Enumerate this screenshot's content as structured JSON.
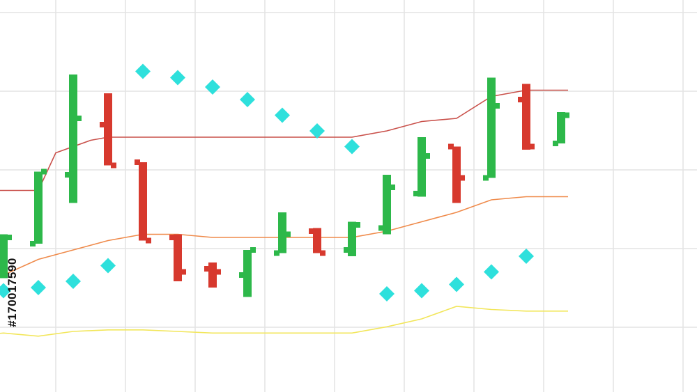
{
  "watermark": {
    "stock_id": "#170017590"
  },
  "colors": {
    "background": "#ffffff",
    "grid": "#e3e3e3",
    "up_bar": "#2db84a",
    "down_bar": "#d7392e",
    "sar_dot": "#2ee0dc",
    "upper_band": "#c9504a",
    "middle_band": "#ef8a4a",
    "lower_band": "#f2e65a"
  },
  "chart_data": {
    "type": "ohlc",
    "title": "",
    "xlabel": "",
    "ylabel": "",
    "grid": true,
    "ylim": [
      0,
      100
    ],
    "x": [
      1,
      2,
      3,
      4,
      5,
      6,
      7,
      8,
      9,
      10,
      11,
      12,
      13,
      14,
      15,
      16,
      17
    ],
    "series": [
      {
        "kind": "ohlc",
        "values": [
          {
            "x": 0,
            "open": 20,
            "high": 33,
            "low": 19,
            "close": 32,
            "dir": "up"
          },
          {
            "x": 1,
            "open": 30,
            "high": 53,
            "low": 30,
            "close": 53,
            "dir": "up"
          },
          {
            "x": 2,
            "open": 52,
            "high": 84,
            "low": 43,
            "close": 70,
            "dir": "up"
          },
          {
            "x": 3,
            "open": 68,
            "high": 78,
            "low": 55,
            "close": 55,
            "dir": "down"
          },
          {
            "x": 4,
            "open": 56,
            "high": 56,
            "low": 31,
            "close": 31,
            "dir": "down"
          },
          {
            "x": 5,
            "open": 32,
            "high": 33,
            "low": 18,
            "close": 21,
            "dir": "down"
          },
          {
            "x": 6,
            "open": 22,
            "high": 24,
            "low": 16,
            "close": 21,
            "dir": "down"
          },
          {
            "x": 7,
            "open": 20,
            "high": 28,
            "low": 13,
            "close": 28,
            "dir": "up"
          },
          {
            "x": 8,
            "open": 27,
            "high": 40,
            "low": 27,
            "close": 33,
            "dir": "up"
          },
          {
            "x": 9,
            "open": 34,
            "high": 35,
            "low": 27,
            "close": 27,
            "dir": "down"
          },
          {
            "x": 10,
            "open": 28,
            "high": 37,
            "low": 26,
            "close": 36,
            "dir": "up"
          },
          {
            "x": 11,
            "open": 35,
            "high": 52,
            "low": 33,
            "close": 48,
            "dir": "up"
          },
          {
            "x": 12,
            "open": 46,
            "high": 64,
            "low": 45,
            "close": 58,
            "dir": "up"
          },
          {
            "x": 13,
            "open": 61,
            "high": 61,
            "low": 43,
            "close": 51,
            "dir": "down"
          },
          {
            "x": 14,
            "open": 51,
            "high": 83,
            "low": 51,
            "close": 74,
            "dir": "up"
          },
          {
            "x": 15,
            "open": 76,
            "high": 81,
            "low": 60,
            "close": 61,
            "dir": "down"
          },
          {
            "x": 16,
            "open": 62,
            "high": 72,
            "low": 62,
            "close": 71,
            "dir": "up"
          }
        ]
      },
      {
        "kind": "dots",
        "values": [
          {
            "x": -1,
            "y": 38
          },
          {
            "x": 0,
            "y": 15
          },
          {
            "x": 1,
            "y": 16
          },
          {
            "x": 2,
            "y": 18
          },
          {
            "x": 3,
            "y": 23
          },
          {
            "x": 4,
            "y": 85
          },
          {
            "x": 5,
            "y": 83
          },
          {
            "x": 6,
            "y": 80
          },
          {
            "x": 7,
            "y": 76
          },
          {
            "x": 8,
            "y": 71
          },
          {
            "x": 9,
            "y": 66
          },
          {
            "x": 10,
            "y": 61
          },
          {
            "x": 11,
            "y": 14
          },
          {
            "x": 12,
            "y": 15
          },
          {
            "x": 13,
            "y": 17
          },
          {
            "x": 14,
            "y": 21
          },
          {
            "x": 15,
            "y": 26
          }
        ]
      },
      {
        "kind": "line",
        "role": "upper",
        "values": [
          {
            "x": -1.5,
            "y": 47
          },
          {
            "x": 0,
            "y": 47
          },
          {
            "x": 1,
            "y": 47
          },
          {
            "x": 1.5,
            "y": 59
          },
          {
            "x": 2.5,
            "y": 63
          },
          {
            "x": 3,
            "y": 64
          },
          {
            "x": 4,
            "y": 64
          },
          {
            "x": 5,
            "y": 64
          },
          {
            "x": 6,
            "y": 64
          },
          {
            "x": 7,
            "y": 64
          },
          {
            "x": 8,
            "y": 64
          },
          {
            "x": 9,
            "y": 64
          },
          {
            "x": 10,
            "y": 64
          },
          {
            "x": 11,
            "y": 66
          },
          {
            "x": 12,
            "y": 69
          },
          {
            "x": 13,
            "y": 70
          },
          {
            "x": 14,
            "y": 77
          },
          {
            "x": 15,
            "y": 79
          },
          {
            "x": 16.2,
            "y": 79
          }
        ]
      },
      {
        "kind": "line",
        "role": "middle",
        "values": [
          {
            "x": -1.5,
            "y": 18
          },
          {
            "x": 0,
            "y": 20
          },
          {
            "x": 1,
            "y": 25
          },
          {
            "x": 2,
            "y": 28
          },
          {
            "x": 3,
            "y": 31
          },
          {
            "x": 4,
            "y": 33
          },
          {
            "x": 5,
            "y": 33
          },
          {
            "x": 6,
            "y": 32
          },
          {
            "x": 7,
            "y": 32
          },
          {
            "x": 8,
            "y": 32
          },
          {
            "x": 9,
            "y": 32
          },
          {
            "x": 10,
            "y": 32
          },
          {
            "x": 11,
            "y": 34
          },
          {
            "x": 12,
            "y": 37
          },
          {
            "x": 13,
            "y": 40
          },
          {
            "x": 14,
            "y": 44
          },
          {
            "x": 15,
            "y": 45
          },
          {
            "x": 16.2,
            "y": 45
          }
        ]
      },
      {
        "kind": "line",
        "role": "lower",
        "values": [
          {
            "x": -1.5,
            "y": 0
          },
          {
            "x": 0,
            "y": 1.5
          },
          {
            "x": 1,
            "y": 0.5
          },
          {
            "x": 2,
            "y": 2
          },
          {
            "x": 3,
            "y": 2.5
          },
          {
            "x": 4,
            "y": 2.5
          },
          {
            "x": 5,
            "y": 2
          },
          {
            "x": 6,
            "y": 1.5
          },
          {
            "x": 7,
            "y": 1.5
          },
          {
            "x": 8,
            "y": 1.5
          },
          {
            "x": 9,
            "y": 1.5
          },
          {
            "x": 10,
            "y": 1.5
          },
          {
            "x": 11,
            "y": 3.5
          },
          {
            "x": 12,
            "y": 6
          },
          {
            "x": 13,
            "y": 10
          },
          {
            "x": 14,
            "y": 9
          },
          {
            "x": 15,
            "y": 8.5
          },
          {
            "x": 16.2,
            "y": 8.5
          }
        ]
      }
    ]
  }
}
